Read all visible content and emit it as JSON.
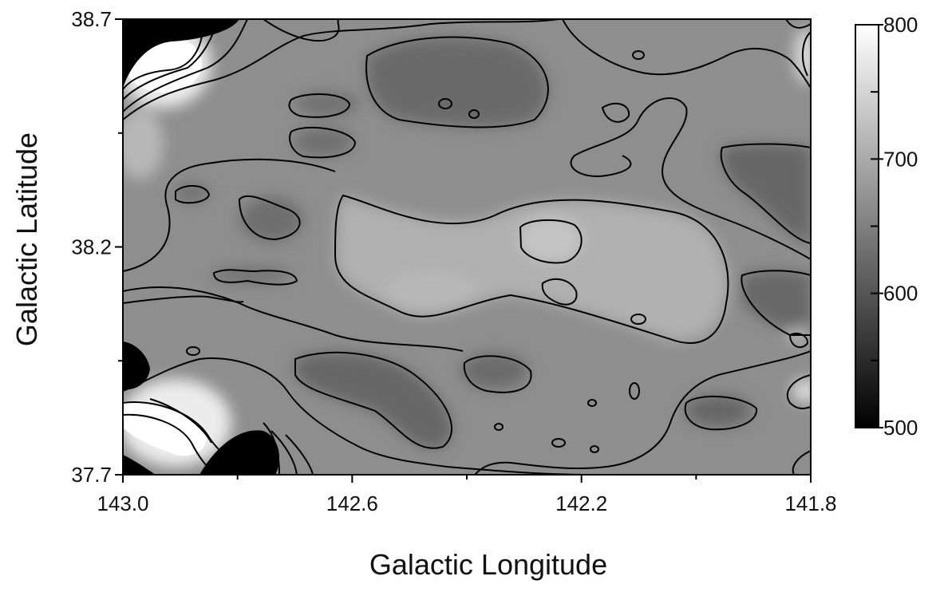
{
  "chart_data": {
    "type": "heatmap",
    "title": "",
    "xlabel": "Galactic Longitude",
    "ylabel": "Galactic Latitude",
    "x_ticks": [
      "143.0",
      "142.6",
      "142.2",
      "141.8"
    ],
    "x_tick_values": [
      143.0,
      142.6,
      142.2,
      141.8
    ],
    "xlim": [
      143.0,
      141.8
    ],
    "y_ticks": [
      "37.7",
      "38.2",
      "38.7"
    ],
    "y_tick_values": [
      37.7,
      38.2,
      38.7
    ],
    "ylim": [
      37.7,
      38.7
    ],
    "colorbar": {
      "ticks": [
        "500",
        "600",
        "700",
        "800"
      ],
      "tick_values": [
        500,
        600,
        700,
        800
      ],
      "range": [
        500,
        800
      ],
      "contour_levels": [
        550,
        650,
        750
      ],
      "colormap": "grayscale",
      "low_color": "#000000",
      "high_color": "#ffffff"
    },
    "grid": false,
    "contours": true,
    "features": [
      {
        "lon": 142.95,
        "lat": 38.58,
        "value": 800
      },
      {
        "lon": 142.9,
        "lat": 37.8,
        "value": 800
      },
      {
        "lon": 142.95,
        "lat": 38.68,
        "value": 500
      },
      {
        "lon": 142.75,
        "lat": 37.73,
        "value": 500
      },
      {
        "lon": 142.99,
        "lat": 37.96,
        "value": 500
      },
      {
        "lon": 142.45,
        "lat": 38.12,
        "value": 700
      },
      {
        "lon": 142.1,
        "lat": 38.2,
        "value": 700
      },
      {
        "lon": 142.22,
        "lat": 38.22,
        "value": 730
      },
      {
        "lon": 142.4,
        "lat": 38.55,
        "value": 620
      },
      {
        "lon": 142.55,
        "lat": 37.95,
        "value": 610
      },
      {
        "lon": 141.88,
        "lat": 38.38,
        "value": 610
      },
      {
        "lon": 141.85,
        "lat": 38.07,
        "value": 610
      },
      {
        "lon": 141.95,
        "lat": 37.85,
        "value": 620
      },
      {
        "lon": 142.75,
        "lat": 38.28,
        "value": 630
      }
    ]
  }
}
